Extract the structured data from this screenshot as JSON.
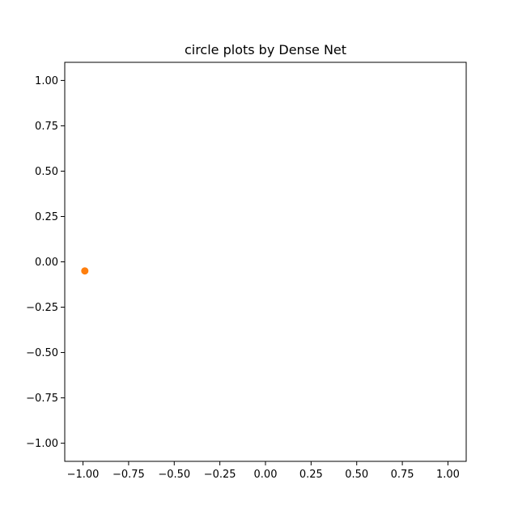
{
  "chart_data": {
    "type": "scatter",
    "title": "circle plots by Dense Net",
    "xlabel": "",
    "ylabel": "",
    "xlim": [
      -1.1,
      1.1
    ],
    "ylim": [
      -1.1,
      1.1
    ],
    "x_ticks": [
      -1.0,
      -0.75,
      -0.5,
      -0.25,
      0.0,
      0.25,
      0.5,
      0.75,
      1.0
    ],
    "y_ticks": [
      -1.0,
      -0.75,
      -0.5,
      -0.25,
      0.0,
      0.25,
      0.5,
      0.75,
      1.0
    ],
    "x_tick_labels": [
      "−1.00",
      "−0.75",
      "−0.50",
      "−0.25",
      "0.00",
      "0.25",
      "0.50",
      "0.75",
      "1.00"
    ],
    "y_tick_labels": [
      "−1.00",
      "−0.75",
      "−0.50",
      "−0.25",
      "0.00",
      "0.25",
      "0.50",
      "0.75",
      "1.00"
    ],
    "grid": false,
    "series": [
      {
        "x": [
          -0.99
        ],
        "y": [
          -0.05
        ],
        "color": "#ff7f0e"
      }
    ]
  }
}
